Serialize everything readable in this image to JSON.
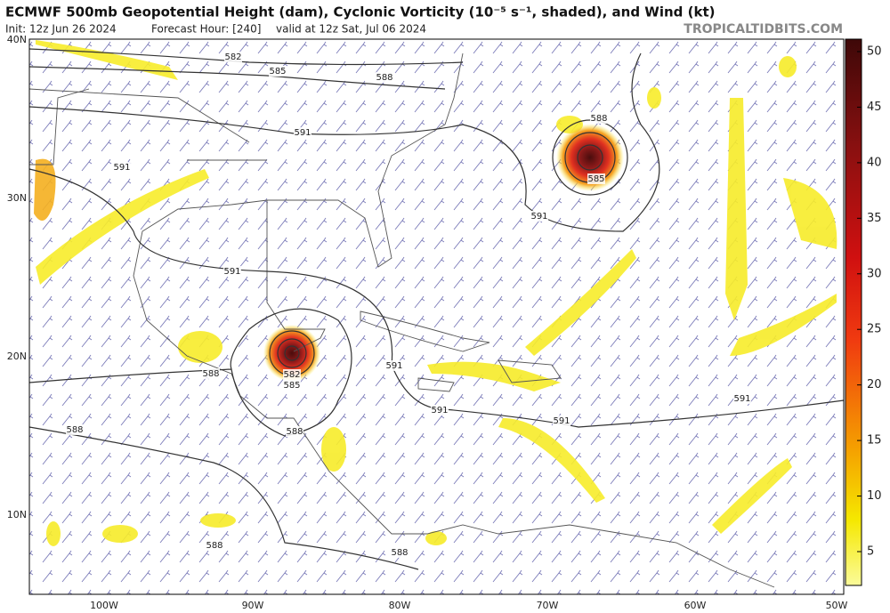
{
  "header": {
    "title": "ECMWF 500mb Geopotential Height (dam), Cyclonic Vorticity (10⁻⁵ s⁻¹, shaded), and Wind (kt)",
    "init": "Init: 12z Jun 26 2024",
    "forecast_hour": "Forecast Hour: [240]",
    "valid": "valid at 12z Sat, Jul 06 2024",
    "source": "TROPICALTIDBITS.COM"
  },
  "map": {
    "lat_labels": [
      "40N",
      "30N",
      "20N",
      "10N"
    ],
    "lon_labels": [
      "100W",
      "90W",
      "80W",
      "70W",
      "60W",
      "50W"
    ],
    "contour_labels": [
      "582",
      "585",
      "588",
      "591",
      "591",
      "588",
      "585",
      "591",
      "591",
      "591",
      "588",
      "582",
      "585",
      "591",
      "591",
      "591",
      "588",
      "588",
      "588",
      "588"
    ]
  },
  "colorbar": {
    "ticks": [
      "5",
      "10",
      "15",
      "20",
      "25",
      "30",
      "35",
      "40",
      "45",
      "50"
    ]
  }
}
